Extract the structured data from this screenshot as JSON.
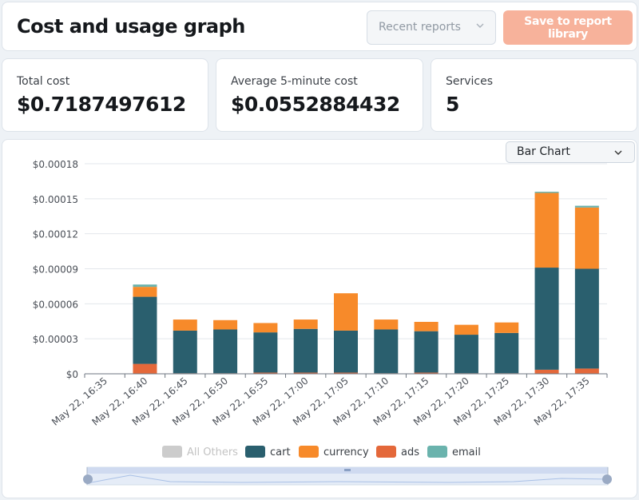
{
  "header": {
    "title": "Cost and usage graph",
    "recent_reports_label": "Recent reports",
    "save_label": "Save to report library"
  },
  "stats": [
    {
      "label": "Total cost",
      "value": "$0.7187497612"
    },
    {
      "label": "Average 5-minute cost",
      "value": "$0.0552884432"
    },
    {
      "label": "Services",
      "value": "5"
    }
  ],
  "chart_type_select": {
    "label": "Bar Chart"
  },
  "chart_data": {
    "type": "bar",
    "stacked": true,
    "categories": [
      "May 22, 16:35",
      "May 22, 16:40",
      "May 22, 16:45",
      "May 22, 16:50",
      "May 22, 16:55",
      "May 22, 17:00",
      "May 22, 17:05",
      "May 22, 17:10",
      "May 22, 17:15",
      "May 22, 17:20",
      "May 22, 17:25",
      "May 22, 17:30",
      "May 22, 17:35"
    ],
    "y_ticks": [
      "$0",
      "$0.00003",
      "$0.00006",
      "$0.00009",
      "$0.00012",
      "$0.00015",
      "$0.00018"
    ],
    "ylim": [
      0,
      0.00018
    ],
    "series": [
      {
        "name": "All Others",
        "color": "#cccccc",
        "hidden": true,
        "values": [
          0,
          0,
          0,
          0,
          0,
          0,
          0,
          0,
          0,
          0,
          0,
          0,
          0
        ]
      },
      {
        "name": "cart",
        "color": "#2a5f6e",
        "values": [
          0,
          5.75e-05,
          3.65e-05,
          3.75e-05,
          3.45e-05,
          3.75e-05,
          3.6e-05,
          3.75e-05,
          3.55e-05,
          3.3e-05,
          3.45e-05,
          8.75e-05,
          8.55e-05
        ]
      },
      {
        "name": "currency",
        "color": "#f78a2a",
        "values": [
          0,
          8.5e-06,
          9.5e-06,
          8e-06,
          8e-06,
          8e-06,
          3.2e-05,
          8.5e-06,
          8e-06,
          8.5e-06,
          9e-06,
          6.4e-05,
          5.25e-05
        ]
      },
      {
        "name": "ads",
        "color": "#e4683a",
        "values": [
          0,
          8.5e-06,
          5e-07,
          5e-07,
          1e-06,
          1e-06,
          1e-06,
          5e-07,
          1e-06,
          5e-07,
          5e-07,
          3.5e-06,
          4.5e-06
        ]
      },
      {
        "name": "email",
        "color": "#6ab3ad",
        "values": [
          0,
          2e-06,
          0,
          0,
          0,
          0,
          0,
          0,
          0,
          0,
          0,
          1e-06,
          1.5e-06
        ]
      }
    ],
    "legend_position": "bottom",
    "grid": true
  }
}
